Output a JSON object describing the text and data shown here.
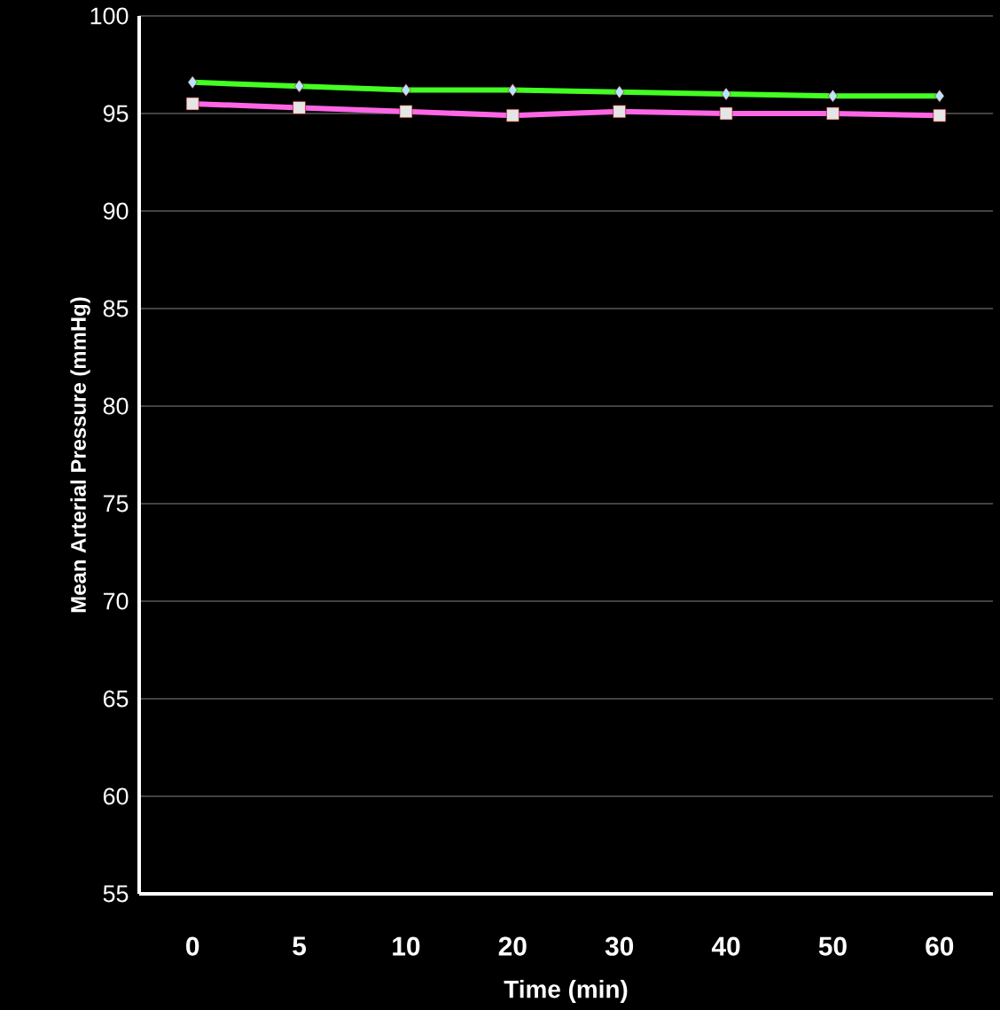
{
  "chart_data": {
    "type": "line",
    "xlabel": "Time (min)",
    "ylabel": "Mean Arterial Pressure  (mmHg)",
    "categories": [
      "0",
      "5",
      "10",
      "20",
      "30",
      "40",
      "50",
      "60"
    ],
    "series": [
      {
        "color": "#44ff22",
        "marker": "diamond",
        "values": [
          96.6,
          96.4,
          96.2,
          96.2,
          96.1,
          96.0,
          95.9,
          95.9
        ]
      },
      {
        "color": "#ff66e6",
        "marker": "square",
        "values": [
          95.5,
          95.3,
          95.1,
          94.9,
          95.1,
          95.0,
          95.0,
          94.9
        ]
      }
    ],
    "ylim": [
      55,
      100
    ],
    "yticks": [
      55,
      60,
      65,
      70,
      75,
      80,
      85,
      90,
      95,
      100
    ],
    "grid": "y"
  }
}
